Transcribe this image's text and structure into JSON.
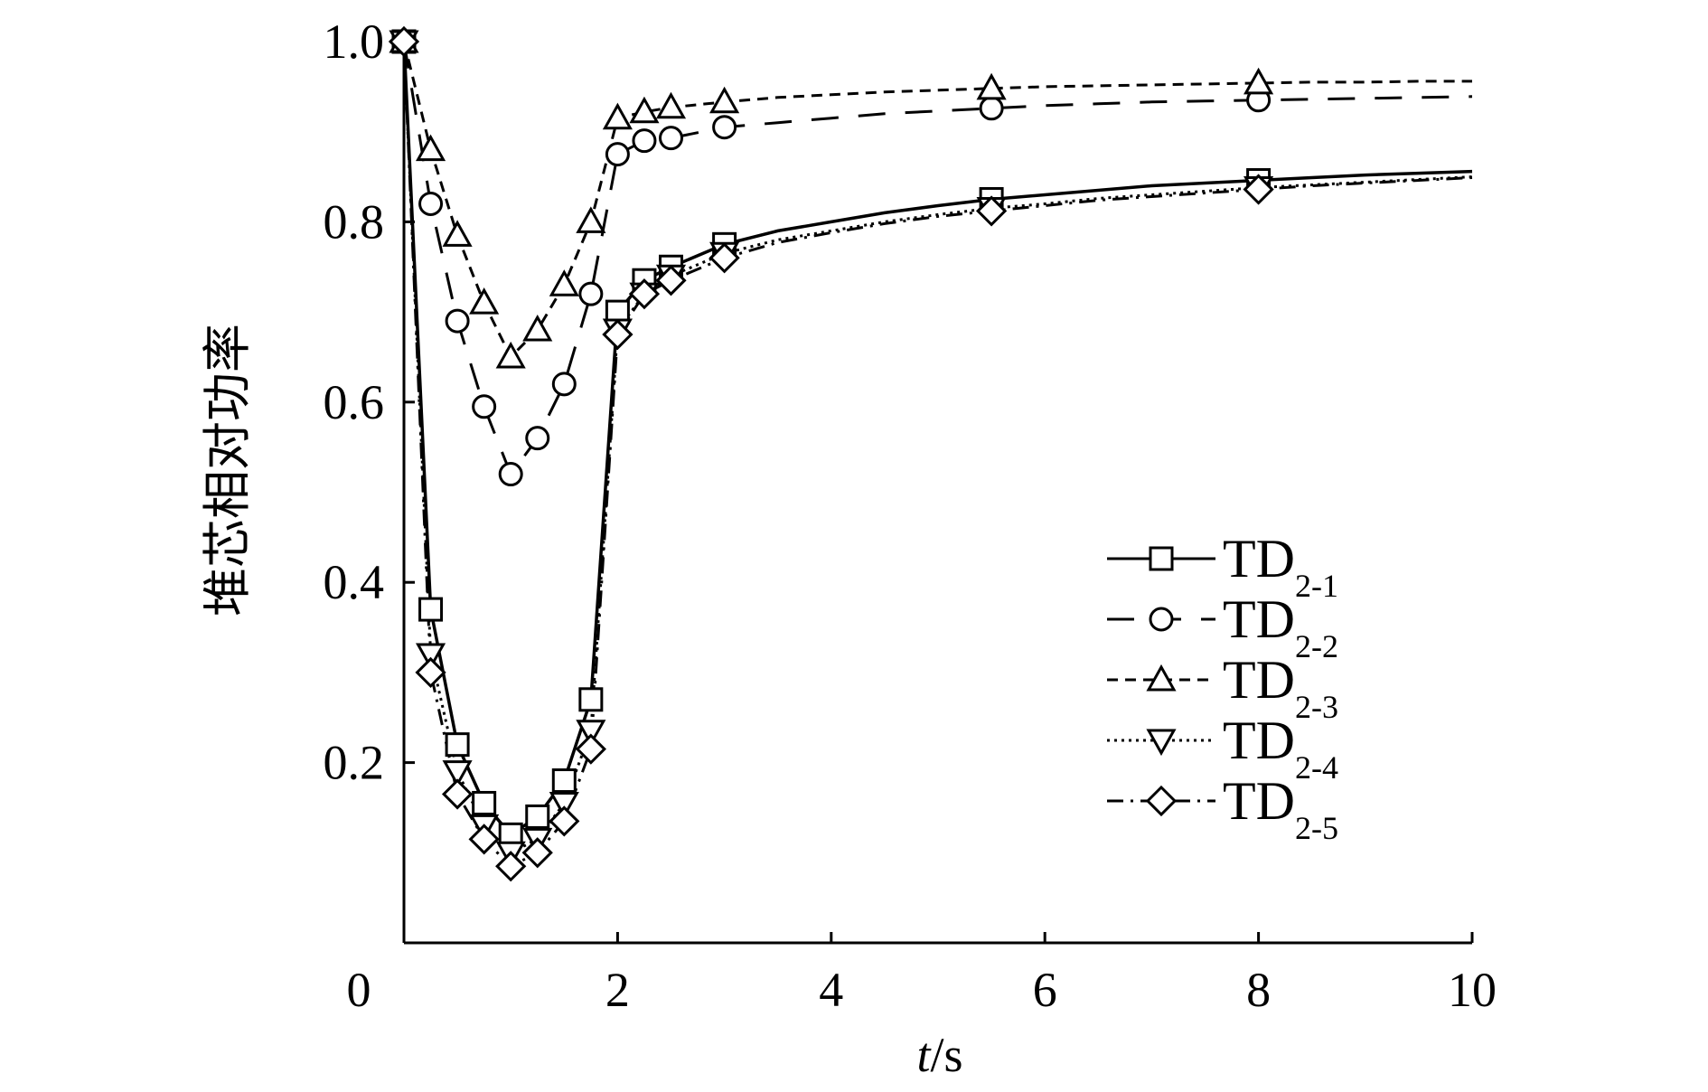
{
  "chart_data": {
    "type": "line",
    "title": "",
    "xlabel_italic": "t",
    "xlabel_unit": "/s",
    "ylabel": "堆芯相对功率",
    "xlim": [
      0,
      10
    ],
    "ylim": [
      0,
      1.0
    ],
    "x_ticks": [
      0,
      2,
      4,
      6,
      8,
      10
    ],
    "x_tick_labels": [
      "0",
      "2",
      "4",
      "6",
      "8",
      "10"
    ],
    "y_ticks": [
      0.2,
      0.4,
      0.6,
      0.8,
      1.0
    ],
    "y_tick_labels": [
      "0.2",
      "0.4",
      "0.6",
      "0.8",
      "1.0"
    ],
    "grid": false,
    "legend_position": "right",
    "series": [
      {
        "name": "TD",
        "name_sub": "2-1",
        "marker": "square",
        "dash": "solid",
        "x": [
          0,
          0.25,
          0.5,
          0.75,
          1.0,
          1.25,
          1.5,
          1.75,
          2.0,
          2.25,
          2.5,
          3.0,
          3.5,
          4.0,
          4.5,
          5.0,
          5.5,
          6.0,
          6.5,
          7.0,
          7.5,
          8.0,
          8.5,
          9.0,
          9.5,
          10.0
        ],
        "y": [
          1.0,
          0.37,
          0.22,
          0.155,
          0.12,
          0.14,
          0.18,
          0.27,
          0.7,
          0.735,
          0.75,
          0.775,
          0.79,
          0.8,
          0.81,
          0.818,
          0.825,
          0.83,
          0.835,
          0.84,
          0.843,
          0.846,
          0.849,
          0.852,
          0.854,
          0.856
        ],
        "marker_x": [
          0,
          0.25,
          0.5,
          0.75,
          1.0,
          1.25,
          1.5,
          1.75,
          2.0,
          2.25,
          2.5,
          3.0,
          5.5,
          8.0
        ],
        "marker_y": [
          1.0,
          0.37,
          0.22,
          0.155,
          0.12,
          0.14,
          0.18,
          0.27,
          0.7,
          0.735,
          0.75,
          0.775,
          0.825,
          0.846
        ]
      },
      {
        "name": "TD",
        "name_sub": "2-2",
        "marker": "circle",
        "dash": "longdash",
        "x": [
          0,
          0.25,
          0.5,
          0.75,
          1.0,
          1.25,
          1.5,
          1.75,
          2.0,
          2.25,
          2.5,
          3.0,
          3.5,
          4.0,
          4.5,
          5.0,
          5.5,
          6.0,
          6.5,
          7.0,
          7.5,
          8.0,
          8.5,
          9.0,
          9.5,
          10.0
        ],
        "y": [
          1.0,
          0.82,
          0.69,
          0.595,
          0.52,
          0.56,
          0.62,
          0.72,
          0.875,
          0.89,
          0.893,
          0.905,
          0.91,
          0.915,
          0.92,
          0.923,
          0.926,
          0.929,
          0.931,
          0.933,
          0.934,
          0.935,
          0.936,
          0.937,
          0.938,
          0.939
        ],
        "marker_x": [
          0,
          0.25,
          0.5,
          0.75,
          1.0,
          1.25,
          1.5,
          1.75,
          2.0,
          2.25,
          2.5,
          3.0,
          5.5,
          8.0
        ],
        "marker_y": [
          1.0,
          0.82,
          0.69,
          0.595,
          0.52,
          0.56,
          0.62,
          0.72,
          0.875,
          0.89,
          0.893,
          0.905,
          0.926,
          0.935
        ]
      },
      {
        "name": "TD",
        "name_sub": "2-3",
        "marker": "triangle-up",
        "dash": "shortdash",
        "x": [
          0,
          0.25,
          0.5,
          0.75,
          1.0,
          1.25,
          1.5,
          1.75,
          2.0,
          2.25,
          2.5,
          3.0,
          3.5,
          4.0,
          4.5,
          5.0,
          5.5,
          6.0,
          6.5,
          7.0,
          7.5,
          8.0,
          8.5,
          9.0,
          9.5,
          10.0
        ],
        "y": [
          1.0,
          0.88,
          0.785,
          0.71,
          0.65,
          0.68,
          0.73,
          0.8,
          0.915,
          0.922,
          0.927,
          0.933,
          0.938,
          0.941,
          0.944,
          0.946,
          0.948,
          0.95,
          0.951,
          0.952,
          0.953,
          0.954,
          0.955,
          0.955,
          0.956,
          0.956
        ],
        "marker_x": [
          0,
          0.25,
          0.5,
          0.75,
          1.0,
          1.25,
          1.5,
          1.75,
          2.0,
          2.25,
          2.5,
          3.0,
          5.5,
          8.0
        ],
        "marker_y": [
          1.0,
          0.88,
          0.785,
          0.71,
          0.65,
          0.68,
          0.73,
          0.8,
          0.915,
          0.922,
          0.927,
          0.933,
          0.948,
          0.954
        ]
      },
      {
        "name": "TD",
        "name_sub": "2-4",
        "marker": "triangle-down",
        "dash": "dotted",
        "x": [
          0,
          0.25,
          0.5,
          0.75,
          1.0,
          1.25,
          1.5,
          1.75,
          2.0,
          2.25,
          2.5,
          3.0,
          3.5,
          4.0,
          4.5,
          5.0,
          5.5,
          6.0,
          6.5,
          7.0,
          7.5,
          8.0,
          8.5,
          9.0,
          9.5,
          10.0
        ],
        "y": [
          1.0,
          0.32,
          0.19,
          0.13,
          0.1,
          0.115,
          0.155,
          0.235,
          0.68,
          0.72,
          0.74,
          0.765,
          0.78,
          0.79,
          0.8,
          0.808,
          0.815,
          0.82,
          0.826,
          0.83,
          0.834,
          0.838,
          0.841,
          0.844,
          0.847,
          0.85
        ],
        "marker_x": [
          0,
          0.25,
          0.5,
          0.75,
          1.0,
          1.25,
          1.5,
          1.75,
          2.0,
          2.25,
          2.5,
          3.0,
          5.5,
          8.0
        ],
        "marker_y": [
          1.0,
          0.32,
          0.19,
          0.13,
          0.1,
          0.115,
          0.155,
          0.235,
          0.68,
          0.72,
          0.74,
          0.765,
          0.815,
          0.838
        ]
      },
      {
        "name": "TD",
        "name_sub": "2-5",
        "marker": "diamond",
        "dash": "dashdot",
        "x": [
          0,
          0.25,
          0.5,
          0.75,
          1.0,
          1.25,
          1.5,
          1.75,
          2.0,
          2.25,
          2.5,
          3.0,
          3.5,
          4.0,
          4.5,
          5.0,
          5.5,
          6.0,
          6.5,
          7.0,
          7.5,
          8.0,
          8.5,
          9.0,
          9.5,
          10.0
        ],
        "y": [
          1.0,
          0.3,
          0.165,
          0.115,
          0.085,
          0.1,
          0.135,
          0.215,
          0.675,
          0.72,
          0.735,
          0.76,
          0.777,
          0.788,
          0.798,
          0.806,
          0.812,
          0.818,
          0.824,
          0.828,
          0.832,
          0.836,
          0.84,
          0.843,
          0.846,
          0.849
        ],
        "marker_x": [
          0,
          0.25,
          0.5,
          0.75,
          1.0,
          1.25,
          1.5,
          1.75,
          2.0,
          2.25,
          2.5,
          3.0,
          5.5,
          8.0
        ],
        "marker_y": [
          1.0,
          0.3,
          0.165,
          0.115,
          0.085,
          0.1,
          0.135,
          0.215,
          0.675,
          0.72,
          0.735,
          0.76,
          0.812,
          0.836
        ]
      }
    ]
  }
}
